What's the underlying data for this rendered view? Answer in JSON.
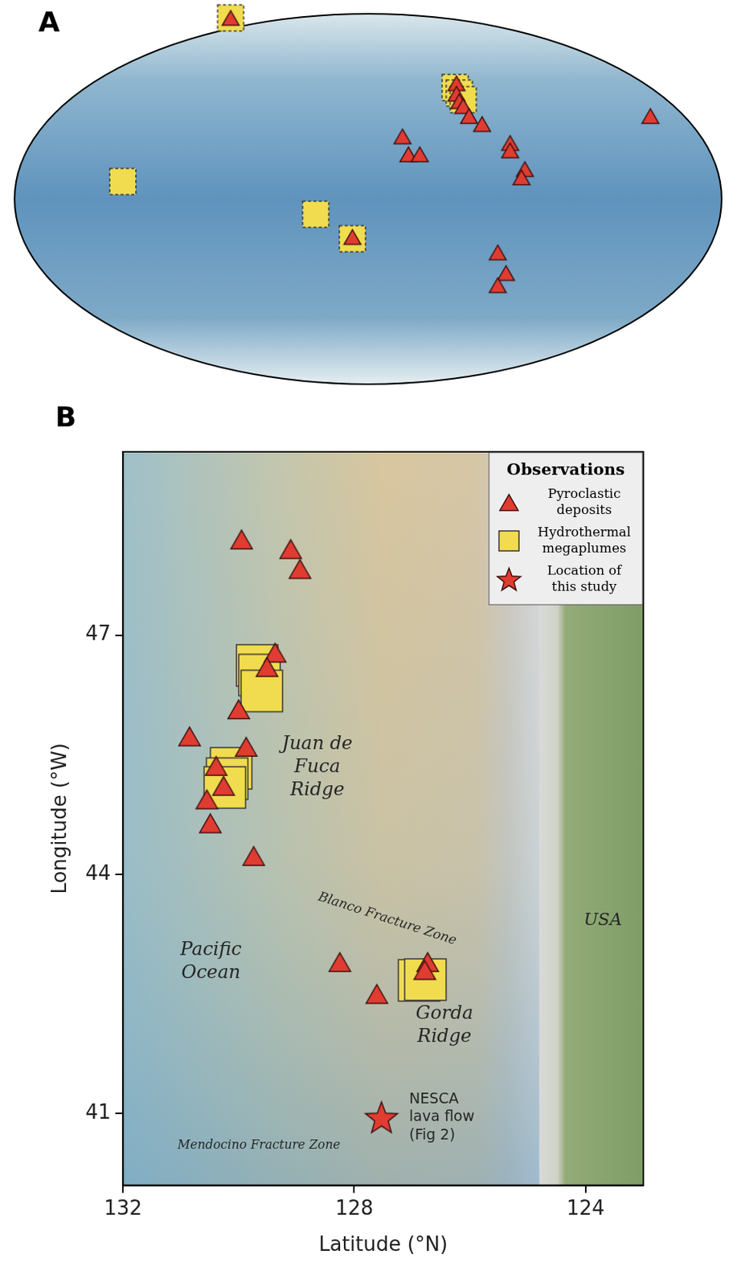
{
  "chart_data": [
    {
      "type": "scatter",
      "panel": "A",
      "xlim": [
        -10,
        350
      ],
      "ylim": [
        -90,
        90
      ],
      "tick_labels": false,
      "series": [
        {
          "name": "Pyroclastic deposits",
          "color": "#e03c31",
          "marker": "triangle",
          "x": [
            100,
            215,
            215,
            216.4,
            218.4,
            221.4,
            228,
            242.3,
            242.3,
            249.8,
            248.1,
            236,
            240.2,
            236,
            313.7,
            187.5,
            190.5,
            196.3,
            162
          ],
          "y": [
            88,
            56.2,
            51.1,
            47.5,
            45.1,
            40.3,
            36.4,
            27.2,
            23.6,
            14.5,
            10.5,
            -26,
            -36,
            -41.9,
            40.3,
            30.4,
            21.7,
            21.7,
            -18.5
          ]
        },
        {
          "name": "Hydrothermal megaplumes",
          "color": "#f0dc4e",
          "marker": "square",
          "x": [
            100,
            45.1,
            143.3,
            162,
            214.3,
            216.4,
            218.4
          ],
          "y": [
            88,
            8.5,
            -7.4,
            -19.3,
            54.2,
            51.5,
            48.3
          ]
        }
      ]
    },
    {
      "type": "scatter",
      "panel": "B",
      "x_label": "Latitude (°N)",
      "y_label": "Longitude (°W)",
      "xlim": [
        132,
        123
      ],
      "xticks": [
        132,
        128,
        124
      ],
      "ylim": [
        40.1,
        49.3
      ],
      "yticks": [
        41,
        44,
        47
      ],
      "legend": "upper right",
      "legend_title": "Observations",
      "series": [
        {
          "name": "Pyroclastic deposits",
          "color": "#e03c31",
          "marker": "triangle",
          "x": [
            129.95,
            129.1,
            128.94,
            129.37,
            129.51,
            130.0,
            130.85,
            129.87,
            130.39,
            130.26,
            130.55,
            130.49,
            129.74,
            128.25,
            127.61,
            126.73,
            126.78
          ],
          "y": [
            48.2,
            48.08,
            47.83,
            46.78,
            46.6,
            46.07,
            45.73,
            45.6,
            45.36,
            45.11,
            44.94,
            44.64,
            44.23,
            42.9,
            42.5,
            42.9,
            42.8
          ]
        },
        {
          "name": "Hydrothermal megaplumes",
          "color": "#f0dc4e",
          "marker": "square",
          "x": [
            129.68,
            129.64,
            129.6,
            130.13,
            130.2,
            130.24,
            126.88,
            126.77
          ],
          "y": [
            46.62,
            46.5,
            46.3,
            45.33,
            45.2,
            45.09,
            42.67,
            42.68
          ]
        },
        {
          "name": "Location of this study",
          "color": "#e03c31",
          "marker": "star",
          "x": [
            127.53
          ],
          "y": [
            40.95
          ]
        }
      ],
      "annotations": [
        {
          "text": "Juan de Fuca Ridge",
          "x": 128.64,
          "y": 45.34
        },
        {
          "text": "Pacific Ocean",
          "x": 130.48,
          "y": 42.9
        },
        {
          "text": "Gorda Ridge",
          "x": 126.44,
          "y": 42.1
        },
        {
          "text": "Blanco Fracture Zone",
          "x": 127.43,
          "y": 43.44
        },
        {
          "text": "Mendocino Fracture Zone",
          "x": 129.65,
          "y": 40.6
        },
        {
          "text": "USA",
          "x": 123.7,
          "y": 43.42
        },
        {
          "text": "NESCA lava flow (Fig 2)",
          "x": 127.05,
          "y": 40.95
        }
      ]
    }
  ]
}
